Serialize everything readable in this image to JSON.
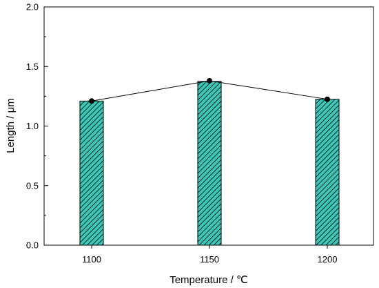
{
  "chart_data": {
    "type": "bar",
    "title": "",
    "xlabel": "Temperature / ℃",
    "ylabel": "Length / μm",
    "categories": [
      "1100",
      "1150",
      "1200"
    ],
    "values": [
      1.21,
      1.375,
      1.225
    ],
    "line_values": [
      1.21,
      1.38,
      1.225
    ],
    "ylim": [
      0,
      2.0
    ],
    "yticks": [
      "0.0",
      "0.5",
      "1.0",
      "1.5",
      "2.0"
    ],
    "grid": false,
    "legend": "none",
    "bar_color": "#3cc7b6",
    "hatch_color": "#000000",
    "line_color": "#000000"
  }
}
